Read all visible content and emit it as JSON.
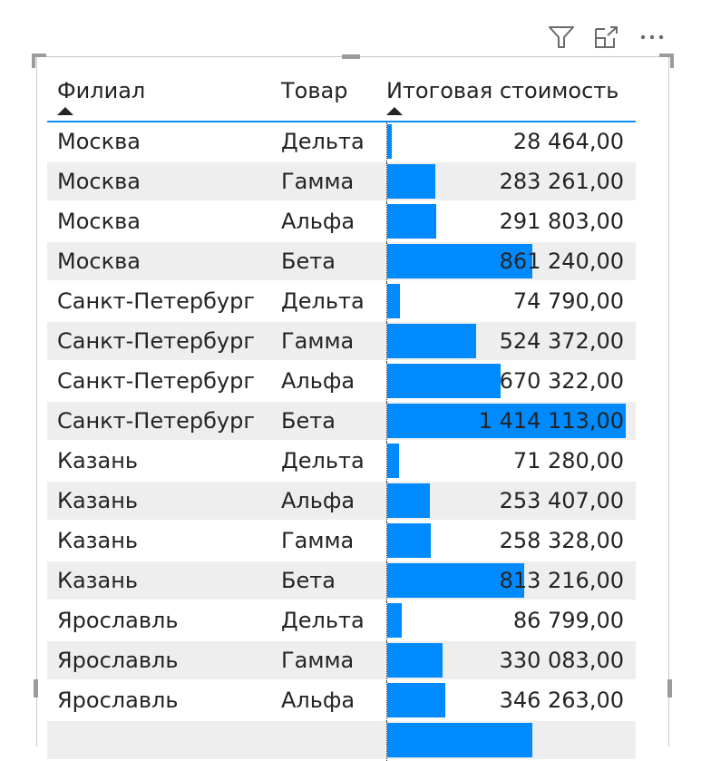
{
  "toolbar": {
    "filter_icon": "filter-icon",
    "focus_icon": "focus-mode-icon",
    "more_icon": "more-options-icon"
  },
  "table": {
    "columns": [
      {
        "label": "Филиал",
        "sort": "ascending"
      },
      {
        "label": "Товар",
        "sort": "none"
      },
      {
        "label": "Итоговая стоимость",
        "sort": "ascending"
      }
    ],
    "bar_color": "#008aff",
    "header_underline_color": "#118dff",
    "bar_max": 1414113,
    "rows": [
      {
        "branch": "Москва",
        "product": "Дельта",
        "value": 28464,
        "display": "28 464,00"
      },
      {
        "branch": "Москва",
        "product": "Гамма",
        "value": 283261,
        "display": "283 261,00"
      },
      {
        "branch": "Москва",
        "product": "Альфа",
        "value": 291803,
        "display": "291 803,00"
      },
      {
        "branch": "Москва",
        "product": "Бета",
        "value": 861240,
        "display": "861 240,00"
      },
      {
        "branch": "Санкт-Петербург",
        "product": "Дельта",
        "value": 74790,
        "display": "74 790,00"
      },
      {
        "branch": "Санкт-Петербург",
        "product": "Гамма",
        "value": 524372,
        "display": "524 372,00"
      },
      {
        "branch": "Санкт-Петербург",
        "product": "Альфа",
        "value": 670322,
        "display": "670 322,00"
      },
      {
        "branch": "Санкт-Петербург",
        "product": "Бета",
        "value": 1414113,
        "display": "1 414 113,00"
      },
      {
        "branch": "Казань",
        "product": "Дельта",
        "value": 71280,
        "display": "71 280,00"
      },
      {
        "branch": "Казань",
        "product": "Альфа",
        "value": 253407,
        "display": "253 407,00"
      },
      {
        "branch": "Казань",
        "product": "Гамма",
        "value": 258328,
        "display": "258 328,00"
      },
      {
        "branch": "Казань",
        "product": "Бета",
        "value": 813216,
        "display": "813 216,00"
      },
      {
        "branch": "Ярославль",
        "product": "Дельта",
        "value": 86799,
        "display": "86 799,00"
      },
      {
        "branch": "Ярославль",
        "product": "Гамма",
        "value": 330083,
        "display": "330 083,00"
      },
      {
        "branch": "Ярославль",
        "product": "Альфа",
        "value": 346263,
        "display": "346 263,00"
      },
      {
        "branch": "",
        "product": "",
        "value": 860000,
        "display": ""
      }
    ]
  }
}
